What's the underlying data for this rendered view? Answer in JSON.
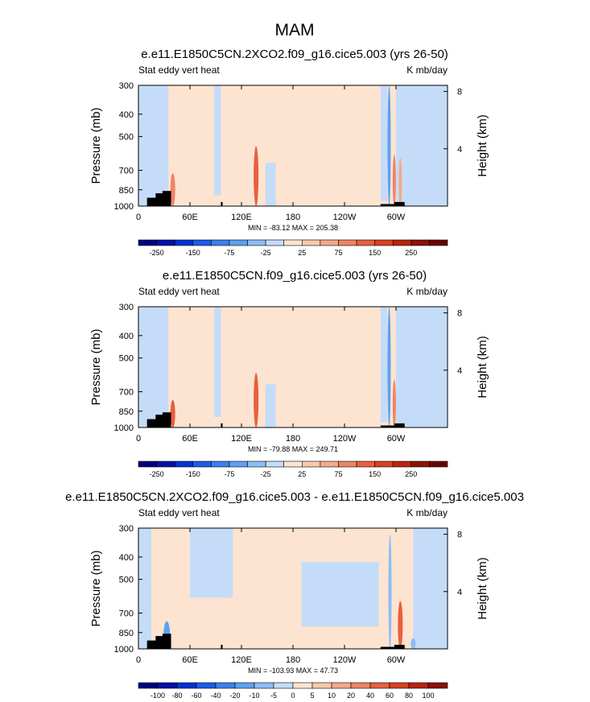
{
  "figure": {
    "title": "MAM"
  },
  "chart_data": [
    {
      "type": "heatmap",
      "title": "e.e11.E1850C5CN.2XCO2.f09_g16.cice5.003 (yrs 26-50)",
      "left_string": "Stat eddy vert heat",
      "right_string": "K mb/day",
      "ylabel": "Pressure (mb)",
      "ylabel_right": "Height (km)",
      "x_ticks": [
        "0",
        "60E",
        "120E",
        "180",
        "120W",
        "60W"
      ],
      "y_ticks": [
        "300",
        "400",
        "500",
        "700",
        "850",
        "1000"
      ],
      "height_ticks": [
        "8",
        "4"
      ],
      "stats": "MIN = -83.12  MAX = 205.38",
      "levels": [
        "-250",
        "-150",
        "-75",
        "-25",
        "25",
        "75",
        "150",
        "250"
      ],
      "colors": [
        "#00007f",
        "#0011a8",
        "#0032d1",
        "#1c5bec",
        "#3b80ee",
        "#5da0f2",
        "#8cbdf5",
        "#c4dcf8",
        "#fde4d1",
        "#f8c9aa",
        "#f4a98a",
        "#ef8463",
        "#e85f3d",
        "#d9401d",
        "#b8250d",
        "#8a1304",
        "#6b0000"
      ],
      "features": [
        {
          "lon": 40,
          "p_top": 720,
          "amp": 2,
          "width": 3
        },
        {
          "lon": 137,
          "p_top": 550,
          "amp": 3,
          "width": 3
        },
        {
          "lon": 292,
          "p_top": 300,
          "amp": -2,
          "width": 2
        },
        {
          "lon": 298,
          "p_top": 600,
          "amp": 2,
          "width": 2
        },
        {
          "lon": 305,
          "p_top": 620,
          "amp": 1,
          "width": 2
        }
      ]
    },
    {
      "type": "heatmap",
      "title": "e.e11.E1850C5CN.f09_g16.cice5.003 (yrs 26-50)",
      "left_string": "Stat eddy vert heat",
      "right_string": "K mb/day",
      "ylabel": "Pressure (mb)",
      "ylabel_right": "Height (km)",
      "x_ticks": [
        "0",
        "60E",
        "120E",
        "180",
        "120W",
        "60W"
      ],
      "y_ticks": [
        "300",
        "400",
        "500",
        "700",
        "850",
        "1000"
      ],
      "height_ticks": [
        "8",
        "4"
      ],
      "stats": "MIN = -79.88  MAX = 249.71",
      "levels": [
        "-250",
        "-150",
        "-75",
        "-25",
        "25",
        "75",
        "150",
        "250"
      ],
      "colors": [
        "#00007f",
        "#0011a8",
        "#0032d1",
        "#1c5bec",
        "#3b80ee",
        "#5da0f2",
        "#8cbdf5",
        "#c4dcf8",
        "#fde4d1",
        "#f8c9aa",
        "#f4a98a",
        "#ef8463",
        "#e85f3d",
        "#d9401d",
        "#b8250d",
        "#8a1304",
        "#6b0000"
      ],
      "features": [
        {
          "lon": 40,
          "p_top": 760,
          "amp": 3,
          "width": 3
        },
        {
          "lon": 137,
          "p_top": 580,
          "amp": 3,
          "width": 3
        },
        {
          "lon": 292,
          "p_top": 300,
          "amp": -2,
          "width": 2
        },
        {
          "lon": 298,
          "p_top": 620,
          "amp": 2,
          "width": 2
        }
      ]
    },
    {
      "type": "heatmap",
      "title": "e.e11.E1850C5CN.2XCO2.f09_g16.cice5.003 - e.e11.E1850C5CN.f09_g16.cice5.003",
      "left_string": "Stat eddy vert heat",
      "right_string": "K mb/day",
      "ylabel": "Pressure (mb)",
      "ylabel_right": "Height (km)",
      "x_ticks": [
        "0",
        "60E",
        "120E",
        "180",
        "120W",
        "60W"
      ],
      "y_ticks": [
        "300",
        "400",
        "500",
        "700",
        "850",
        "1000"
      ],
      "height_ticks": [
        "8",
        "4"
      ],
      "stats": "MIN = -103.93  MAX = 47.73",
      "levels": [
        "-100",
        "-80",
        "-60",
        "-40",
        "-20",
        "-10",
        "-5",
        "0",
        "5",
        "10",
        "20",
        "40",
        "60",
        "80",
        "100"
      ],
      "colors": [
        "#00007f",
        "#0011a8",
        "#0032d1",
        "#1c5bec",
        "#3b80ee",
        "#5da0f2",
        "#8cbdf5",
        "#c4dcf8",
        "#fde4d1",
        "#f8c9aa",
        "#f4a98a",
        "#ef8463",
        "#e85f3d",
        "#d9401d",
        "#b8250d",
        "#8a1304"
      ],
      "features": [
        {
          "lon": 33,
          "p_top": 760,
          "amp": -2,
          "width": 4
        },
        {
          "lon": 293,
          "p_top": 320,
          "amp": -1,
          "width": 2
        },
        {
          "lon": 305,
          "p_top": 620,
          "amp": 3,
          "width": 3
        },
        {
          "lon": 320,
          "p_top": 900,
          "amp": -1,
          "width": 3
        }
      ]
    }
  ]
}
